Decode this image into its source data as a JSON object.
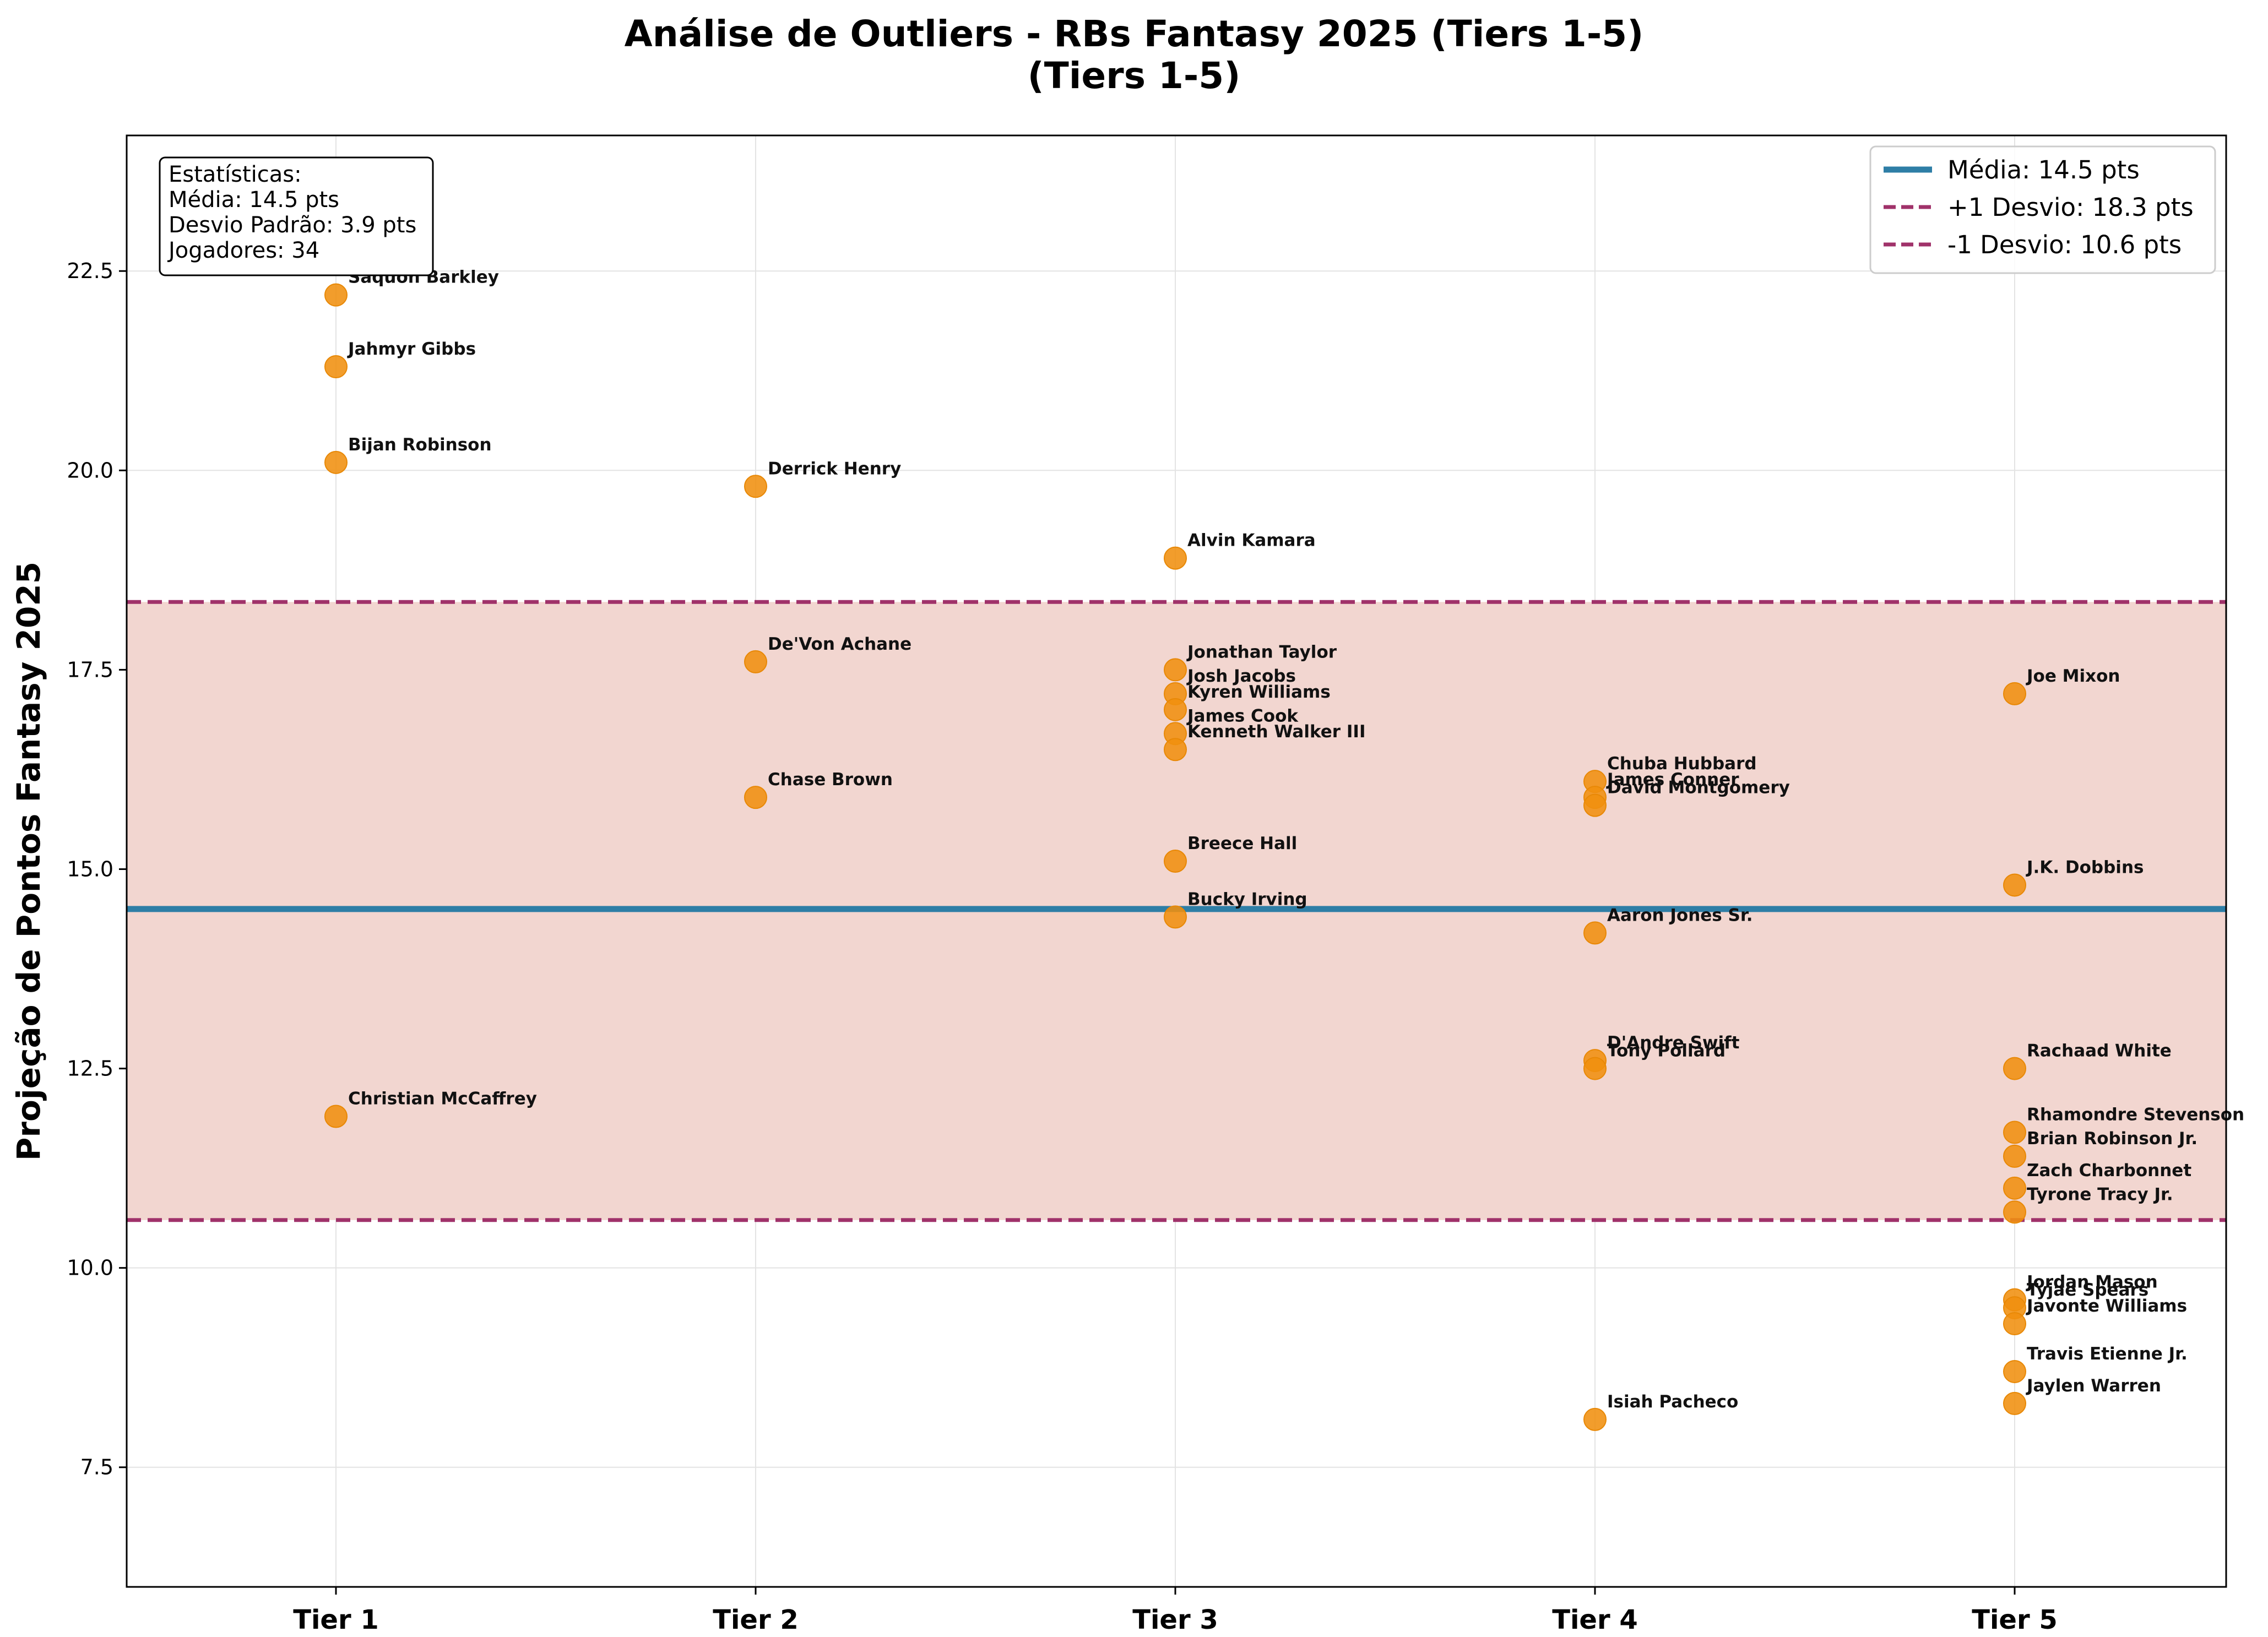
{
  "chart_data": {
    "type": "scatter",
    "title": "Análise de Outliers - RBs Fantasy 2025 (Tiers 1-5)",
    "subtitle": "(Tiers 1-5)",
    "xlabel": "",
    "ylabel": "Projeção de Pontos Fantasy 2025",
    "categories": [
      "Tier 1",
      "Tier 2",
      "Tier 3",
      "Tier 4",
      "Tier 5"
    ],
    "ylim": [
      6.0,
      24.2
    ],
    "yticks": [
      7.5,
      10.0,
      12.5,
      15.0,
      17.5,
      20.0,
      22.5
    ],
    "ytick_labels": [
      "7.5",
      "10.0",
      "12.5",
      "15.0",
      "17.5",
      "20.0",
      "22.5"
    ],
    "grid": true,
    "legend_position": "top-right",
    "colors": {
      "points": "#f0900f",
      "mean_line": "#2e7ea6",
      "std_lines": "#a0326a",
      "band": "#f2d6d0"
    },
    "mean": 14.5,
    "upper_std": 18.35,
    "lower_std": 10.6,
    "legend": [
      {
        "label": "Média: 14.5 pts",
        "style": "solid",
        "color": "#2e7ea6"
      },
      {
        "label": "+1 Desvio: 18.3 pts",
        "style": "dashed",
        "color": "#a0326a"
      },
      {
        "label": "-1 Desvio: 10.6 pts",
        "style": "dashed",
        "color": "#a0326a"
      }
    ],
    "stats_box": [
      "Estatísticas:",
      "Média: 14.5 pts",
      "Desvio Padrão: 3.9 pts",
      "Jogadores: 34"
    ],
    "points": [
      {
        "name": "Saquon Barkley",
        "tier": 1,
        "value": 22.2
      },
      {
        "name": "Jahmyr Gibbs",
        "tier": 1,
        "value": 21.3
      },
      {
        "name": "Bijan Robinson",
        "tier": 1,
        "value": 20.1
      },
      {
        "name": "Christian McCaffrey",
        "tier": 1,
        "value": 11.9
      },
      {
        "name": "Derrick Henry",
        "tier": 2,
        "value": 19.8
      },
      {
        "name": "De'Von Achane",
        "tier": 2,
        "value": 17.6
      },
      {
        "name": "Chase Brown",
        "tier": 2,
        "value": 15.9
      },
      {
        "name": "Alvin Kamara",
        "tier": 3,
        "value": 18.9
      },
      {
        "name": "Jonathan Taylor",
        "tier": 3,
        "value": 17.5
      },
      {
        "name": "Josh Jacobs",
        "tier": 3,
        "value": 17.2
      },
      {
        "name": "Kyren Williams",
        "tier": 3,
        "value": 17.0
      },
      {
        "name": "James Cook",
        "tier": 3,
        "value": 16.7
      },
      {
        "name": "Kenneth Walker III",
        "tier": 3,
        "value": 16.5
      },
      {
        "name": "Breece Hall",
        "tier": 3,
        "value": 15.1
      },
      {
        "name": "Bucky Irving",
        "tier": 3,
        "value": 14.4
      },
      {
        "name": "Chuba Hubbard",
        "tier": 4,
        "value": 16.1
      },
      {
        "name": "James Conner",
        "tier": 4,
        "value": 15.9
      },
      {
        "name": "David Montgomery",
        "tier": 4,
        "value": 15.8
      },
      {
        "name": "Aaron Jones Sr.",
        "tier": 4,
        "value": 14.2
      },
      {
        "name": "D'Andre Swift",
        "tier": 4,
        "value": 12.6
      },
      {
        "name": "Tony Pollard",
        "tier": 4,
        "value": 12.5
      },
      {
        "name": "Isiah Pacheco",
        "tier": 4,
        "value": 8.1
      },
      {
        "name": "Joe Mixon",
        "tier": 5,
        "value": 17.2
      },
      {
        "name": "J.K. Dobbins",
        "tier": 5,
        "value": 14.8
      },
      {
        "name": "Rachaad White",
        "tier": 5,
        "value": 12.5
      },
      {
        "name": "Rhamondre Stevenson",
        "tier": 5,
        "value": 11.7
      },
      {
        "name": "Brian Robinson Jr.",
        "tier": 5,
        "value": 11.4
      },
      {
        "name": "Zach Charbonnet",
        "tier": 5,
        "value": 11.0
      },
      {
        "name": "Tyrone Tracy Jr.",
        "tier": 5,
        "value": 10.7
      },
      {
        "name": "Jordan Mason",
        "tier": 5,
        "value": 9.6
      },
      {
        "name": "Tyjae Spears",
        "tier": 5,
        "value": 9.5
      },
      {
        "name": "Javonte Williams",
        "tier": 5,
        "value": 9.3
      },
      {
        "name": "Travis Etienne Jr.",
        "tier": 5,
        "value": 8.7
      },
      {
        "name": "Jaylen Warren",
        "tier": 5,
        "value": 8.3
      }
    ]
  }
}
